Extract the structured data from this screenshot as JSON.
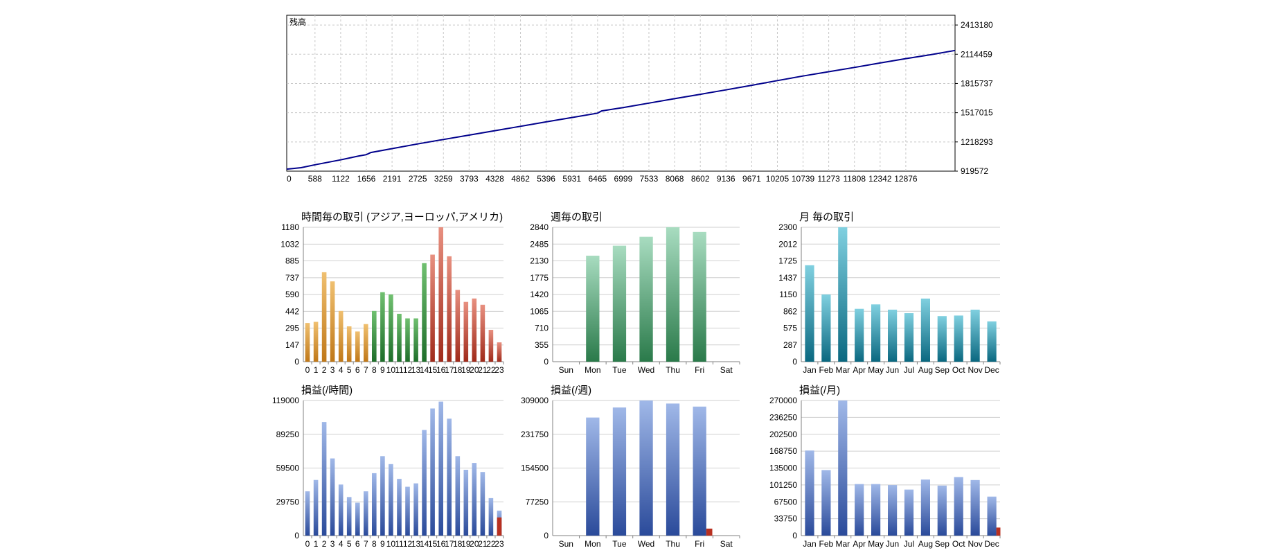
{
  "chart_data": [
    {
      "id": "balance",
      "type": "line",
      "title": "",
      "corner_label": "残高",
      "xticks": [
        0,
        588,
        1122,
        1656,
        2191,
        2725,
        3259,
        3793,
        4328,
        4862,
        5396,
        5931,
        6465,
        6999,
        7533,
        8068,
        8602,
        9136,
        9671,
        10205,
        10739,
        11273,
        11808,
        12342,
        12876
      ],
      "yticks": [
        919572,
        1218293,
        1517015,
        1815737,
        2114459,
        2413180
      ],
      "xlim": [
        0,
        13900
      ],
      "ylim": [
        919572,
        2513000
      ],
      "grid": true,
      "series": [
        {
          "color": "#00008b",
          "x": [
            0,
            300,
            588,
            1122,
            1500,
            1656,
            1750,
            2191,
            2725,
            3259,
            3793,
            4328,
            4862,
            5396,
            5931,
            6465,
            6550,
            6999,
            7533,
            8068,
            8602,
            9136,
            9671,
            10205,
            10739,
            11273,
            11808,
            12342,
            12876,
            13400,
            13900
          ],
          "y": [
            940000,
            955000,
            985000,
            1035000,
            1075000,
            1088000,
            1110000,
            1150000,
            1198000,
            1243000,
            1288000,
            1333000,
            1378000,
            1423000,
            1468000,
            1512000,
            1535000,
            1570000,
            1615000,
            1660000,
            1705000,
            1750000,
            1797000,
            1845000,
            1892000,
            1936000,
            1980000,
            2025000,
            2070000,
            2110000,
            2153000
          ]
        }
      ]
    },
    {
      "id": "hourly-trades",
      "type": "bar",
      "title": "時間毎の取引 (アジア,ヨーロッパ,アメリカ)",
      "categories": [
        "0",
        "1",
        "2",
        "3",
        "4",
        "5",
        "6",
        "7",
        "8",
        "9",
        "10",
        "11",
        "12",
        "13",
        "14",
        "15",
        "16",
        "17",
        "18",
        "19",
        "20",
        "21",
        "22",
        "23"
      ],
      "values": [
        340,
        350,
        785,
        705,
        445,
        310,
        265,
        330,
        445,
        610,
        590,
        420,
        380,
        380,
        865,
        940,
        1180,
        925,
        630,
        525,
        555,
        500,
        280,
        170
      ],
      "bar_colors": [
        "#d4932a",
        "#d4932a",
        "#d4932a",
        "#d4932a",
        "#d4932a",
        "#d4932a",
        "#d4932a",
        "#d4932a",
        "#2f8a3a",
        "#2f8a3a",
        "#2f8a3a",
        "#2f8a3a",
        "#2f8a3a",
        "#2f8a3a",
        "#2f8a3a",
        "#c04a3a",
        "#c04a3a",
        "#c04a3a",
        "#c04a3a",
        "#c04a3a",
        "#c04a3a",
        "#c04a3a",
        "#c04a3a",
        "#c04a3a"
      ],
      "yticks": [
        0,
        147,
        295,
        442,
        590,
        737,
        885,
        1032,
        1180
      ],
      "ylim": [
        0,
        1180
      ],
      "grid": true
    },
    {
      "id": "weekly-trades",
      "type": "bar",
      "title": "週毎の取引",
      "categories": [
        "Sun",
        "Mon",
        "Tue",
        "Wed",
        "Thu",
        "Fri",
        "Sat"
      ],
      "values": [
        0,
        2240,
        2450,
        2640,
        2840,
        2740,
        0
      ],
      "color": "#3a9a5e",
      "yticks": [
        0,
        355,
        710,
        1065,
        1420,
        1775,
        2130,
        2485,
        2840
      ],
      "ylim": [
        0,
        2840
      ],
      "grid": true
    },
    {
      "id": "monthly-trades",
      "type": "bar",
      "title": "月 毎の取引",
      "categories": [
        "Jan",
        "Feb",
        "Mar",
        "Apr",
        "May",
        "Jun",
        "Jul",
        "Aug",
        "Sep",
        "Oct",
        "Nov",
        "Dec"
      ],
      "values": [
        1650,
        1150,
        2300,
        905,
        980,
        890,
        830,
        1080,
        780,
        790,
        890,
        690
      ],
      "color": "#1a85a0",
      "yticks": [
        0,
        287,
        575,
        862,
        1150,
        1437,
        1725,
        2012,
        2300
      ],
      "ylim": [
        0,
        2300
      ],
      "grid": true
    },
    {
      "id": "hourly-profit",
      "type": "bar",
      "title": "損益(/時間)",
      "categories": [
        "0",
        "1",
        "2",
        "3",
        "4",
        "5",
        "6",
        "7",
        "8",
        "9",
        "10",
        "11",
        "12",
        "13",
        "14",
        "15",
        "16",
        "17",
        "18",
        "19",
        "20",
        "21",
        "22",
        "23"
      ],
      "values": [
        39000,
        49000,
        100000,
        68000,
        45000,
        34000,
        29000,
        39000,
        55000,
        70000,
        63000,
        50000,
        43000,
        46000,
        93000,
        112000,
        118000,
        103000,
        70000,
        58000,
        64000,
        56000,
        33000,
        22000
      ],
      "loss_values": [
        0,
        0,
        0,
        0,
        0,
        0,
        0,
        0,
        0,
        0,
        0,
        0,
        0,
        0,
        0,
        0,
        0,
        0,
        0,
        0,
        0,
        0,
        0,
        16000
      ],
      "color": "#4a70c0",
      "loss_color": "#b83020",
      "yticks": [
        0,
        29750,
        59500,
        89250,
        119000
      ],
      "ylim": [
        0,
        119000
      ],
      "grid": true
    },
    {
      "id": "weekly-profit",
      "type": "bar",
      "title": "損益(/週)",
      "categories": [
        "Sun",
        "Mon",
        "Tue",
        "Wed",
        "Thu",
        "Fri",
        "Sat"
      ],
      "values": [
        0,
        270000,
        293000,
        309000,
        302000,
        295000,
        0
      ],
      "loss_values": [
        0,
        0,
        0,
        0,
        0,
        16000,
        0
      ],
      "color": "#4a70c0",
      "loss_color": "#b83020",
      "yticks": [
        0,
        77250,
        154500,
        231750,
        309000
      ],
      "ylim": [
        0,
        309000
      ],
      "grid": true
    },
    {
      "id": "monthly-profit",
      "type": "bar",
      "title": "損益(/月)",
      "categories": [
        "Jan",
        "Feb",
        "Mar",
        "Apr",
        "May",
        "Jun",
        "Jul",
        "Aug",
        "Sep",
        "Oct",
        "Nov",
        "Dec"
      ],
      "values": [
        170000,
        131000,
        270000,
        103000,
        103000,
        101000,
        92000,
        112000,
        100000,
        117000,
        111000,
        78000
      ],
      "loss_values": [
        0,
        0,
        0,
        0,
        0,
        0,
        0,
        0,
        0,
        0,
        0,
        16000
      ],
      "color": "#4a70c0",
      "loss_color": "#b83020",
      "yticks": [
        0,
        33750,
        67500,
        101250,
        135000,
        168750,
        202500,
        236250,
        270000
      ],
      "ylim": [
        0,
        270000
      ],
      "grid": true
    }
  ]
}
